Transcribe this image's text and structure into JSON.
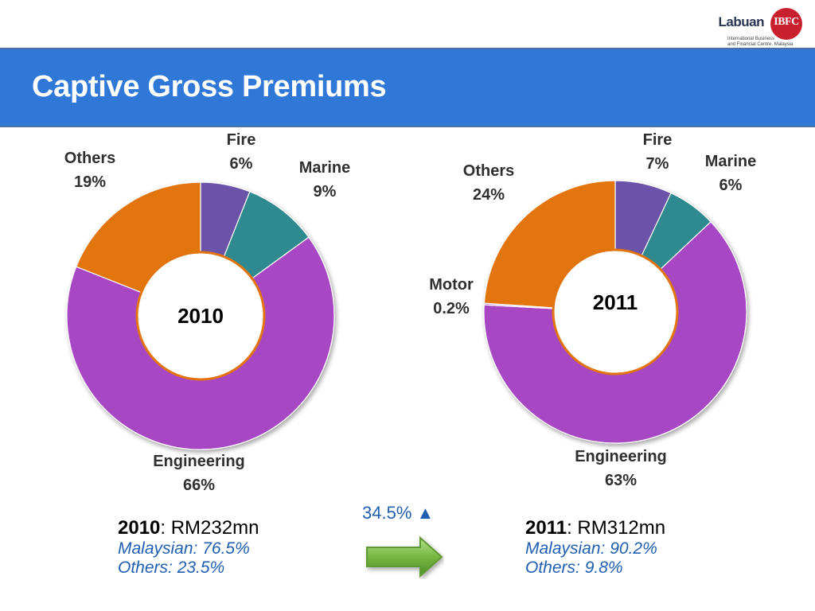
{
  "logo": {
    "word": "Labuan",
    "mark": "IBFC",
    "sub_line1": "International Business",
    "sub_line2": "and Financial Centre, Malaysia"
  },
  "title": "Captive Gross Premiums",
  "colors": {
    "header": "#2f78d8",
    "fire": "#6a53a8",
    "marine": "#2e8a8f",
    "engineering": "#a847c4",
    "motor": "#c58ad6",
    "others": "#e2740e",
    "center_ring": "#e2740e",
    "accent_text": "#1f5fb0",
    "arrow": "#76b843"
  },
  "chart_data": [
    {
      "type": "pie",
      "center_label": "2010",
      "labels": [
        {
          "name": "Fire",
          "value": "6%"
        },
        {
          "name": "Marine",
          "value": "9%"
        },
        {
          "name": "Engineering",
          "value": "66%"
        },
        {
          "name": "Others",
          "value": "19%"
        }
      ],
      "slices": [
        {
          "name": "Fire",
          "value": 6,
          "color": "#6a53a8"
        },
        {
          "name": "Marine",
          "value": 9,
          "color": "#2e8a8f"
        },
        {
          "name": "Engineering",
          "value": 66,
          "color": "#a847c4"
        },
        {
          "name": "Others",
          "value": 19,
          "color": "#e2740e"
        }
      ]
    },
    {
      "type": "pie",
      "center_label": "2011",
      "labels": [
        {
          "name": "Fire",
          "value": "7%"
        },
        {
          "name": "Marine",
          "value": "6%"
        },
        {
          "name": "Engineering",
          "value": "63%"
        },
        {
          "name": "Motor",
          "value": "0.2%"
        },
        {
          "name": "Others",
          "value": "24%"
        }
      ],
      "slices": [
        {
          "name": "Fire",
          "value": 7,
          "color": "#6a53a8"
        },
        {
          "name": "Marine",
          "value": 6,
          "color": "#2e8a8f"
        },
        {
          "name": "Engineering",
          "value": 63,
          "color": "#a847c4"
        },
        {
          "name": "Motor",
          "value": 0.2,
          "color": "#c58ad6"
        },
        {
          "name": "Others",
          "value": 24,
          "color": "#e2740e"
        }
      ]
    }
  ],
  "summary_2010": {
    "year": "2010",
    "amount": ": RM232mn",
    "malaysian": "Malaysian: 76.5%",
    "others": "Others: 23.5%"
  },
  "summary_2011": {
    "year": "2011",
    "amount": ": RM312mn",
    "malaysian": "Malaysian: 90.2%",
    "others": "Others: 9.8%"
  },
  "growth": {
    "value": "34.5%",
    "symbol": "▲"
  }
}
